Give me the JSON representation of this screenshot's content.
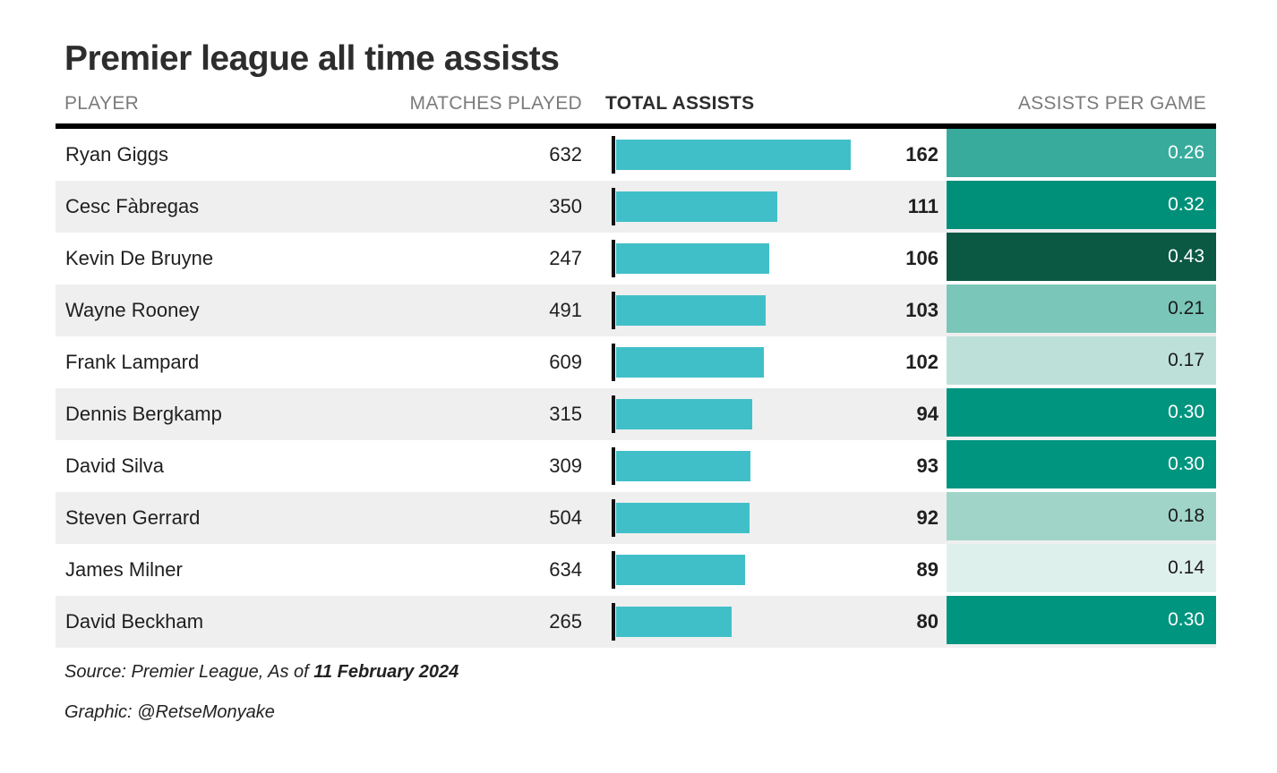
{
  "title": "Premier league all time assists",
  "columns": {
    "player": "PLAYER",
    "matches": "MATCHES PLAYED",
    "assists": "TOTAL ASSISTS",
    "apg": "ASSISTS PER GAME"
  },
  "footer": {
    "source_prefix": "Source: Premier League, As of ",
    "source_date": "11 February 2024",
    "credit": "Graphic: @RetseMonyake"
  },
  "colors": {
    "bar": "#41bfc8",
    "row_alt_background": "#efefef",
    "header_rule": "#000000",
    "axis_tick": "#111111"
  },
  "rows": [
    {
      "player": "Ryan Giggs",
      "matches": "632",
      "assists": "162",
      "apg": "0.26",
      "apg_color": "#38ab9d",
      "apg_text_color": "#ffffff"
    },
    {
      "player": "Cesc Fàbregas",
      "matches": "350",
      "assists": "111",
      "apg": "0.32",
      "apg_color": "#009079",
      "apg_text_color": "#ffffff"
    },
    {
      "player": "Kevin De Bruyne",
      "matches": "247",
      "assists": "106",
      "apg": "0.43",
      "apg_color": "#0b5843",
      "apg_text_color": "#ffffff"
    },
    {
      "player": "Wayne Rooney",
      "matches": "491",
      "assists": "103",
      "apg": "0.21",
      "apg_color": "#7ac6b9",
      "apg_text_color": "#1a1a1a"
    },
    {
      "player": "Frank Lampard",
      "matches": "609",
      "assists": "102",
      "apg": "0.17",
      "apg_color": "#bde1d8",
      "apg_text_color": "#1a1a1a"
    },
    {
      "player": "Dennis Bergkamp",
      "matches": "315",
      "assists": "94",
      "apg": "0.30",
      "apg_color": "#00957f",
      "apg_text_color": "#ffffff"
    },
    {
      "player": "David Silva",
      "matches": "309",
      "assists": "93",
      "apg": "0.30",
      "apg_color": "#00957f",
      "apg_text_color": "#ffffff"
    },
    {
      "player": "Steven Gerrard",
      "matches": "504",
      "assists": "92",
      "apg": "0.18",
      "apg_color": "#a0d4c8",
      "apg_text_color": "#1a1a1a"
    },
    {
      "player": "James Milner",
      "matches": "634",
      "assists": "89",
      "apg": "0.14",
      "apg_color": "#def0ec",
      "apg_text_color": "#1a1a1a"
    },
    {
      "player": "David Beckham",
      "matches": "265",
      "assists": "80",
      "apg": "0.30",
      "apg_color": "#00957f",
      "apg_text_color": "#ffffff"
    }
  ],
  "chart_data": {
    "type": "bar",
    "title": "Premier league all time assists",
    "orientation": "horizontal",
    "categories": [
      "Ryan Giggs",
      "Cesc Fàbregas",
      "Kevin De Bruyne",
      "Wayne Rooney",
      "Frank Lampard",
      "Dennis Bergkamp",
      "David Silva",
      "Steven Gerrard",
      "James Milner",
      "David Beckham"
    ],
    "series": [
      {
        "name": "Matches played",
        "values": [
          632,
          350,
          247,
          491,
          609,
          315,
          309,
          504,
          634,
          265
        ]
      },
      {
        "name": "Total assists",
        "values": [
          162,
          111,
          106,
          103,
          102,
          94,
          93,
          92,
          89,
          80
        ]
      },
      {
        "name": "Assists per game",
        "values": [
          0.26,
          0.32,
          0.43,
          0.21,
          0.17,
          0.3,
          0.3,
          0.18,
          0.14,
          0.3
        ]
      }
    ],
    "bar_series": "Total assists",
    "heatmap_series": "Assists per game",
    "xlabel": "",
    "ylabel": "",
    "xlim": [
      0,
      162
    ],
    "grid": false,
    "legend_position": "none",
    "source": "Source: Premier League, As of 11 February 2024",
    "credit": "Graphic: @RetseMonyake"
  }
}
